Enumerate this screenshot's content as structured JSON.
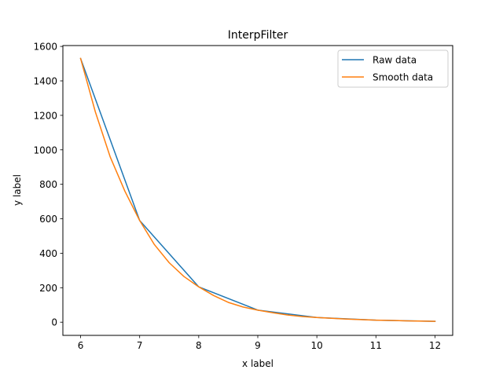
{
  "chart_data": {
    "type": "line",
    "title": "InterpFilter",
    "xlabel": "x label",
    "ylabel": "y label",
    "xlim": [
      5.7,
      12.3
    ],
    "ylim": [
      -76.5,
      1605
    ],
    "xticks": [
      6,
      7,
      8,
      9,
      10,
      11,
      12
    ],
    "yticks": [
      0,
      200,
      400,
      600,
      800,
      1000,
      1200,
      1400,
      1600
    ],
    "grid": false,
    "legend_position": "top-right",
    "series": [
      {
        "name": "Raw data",
        "color": "#1f77b4",
        "x": [
          6,
          7,
          8,
          9,
          10,
          11,
          12
        ],
        "y": [
          1530,
          590,
          205,
          70,
          27,
          12,
          5
        ]
      },
      {
        "name": "Smooth data",
        "color": "#ff7f0e",
        "x": [
          6,
          6.25,
          6.5,
          6.75,
          7,
          7.25,
          7.5,
          7.75,
          8,
          8.25,
          8.5,
          8.75,
          9,
          9.25,
          9.5,
          9.75,
          10,
          10.5,
          11,
          11.5,
          12
        ],
        "y": [
          1530,
          1220,
          960,
          760,
          590,
          450,
          345,
          265,
          205,
          155,
          115,
          88,
          70,
          55,
          42,
          33,
          27,
          18,
          12,
          8,
          5
        ]
      }
    ]
  }
}
